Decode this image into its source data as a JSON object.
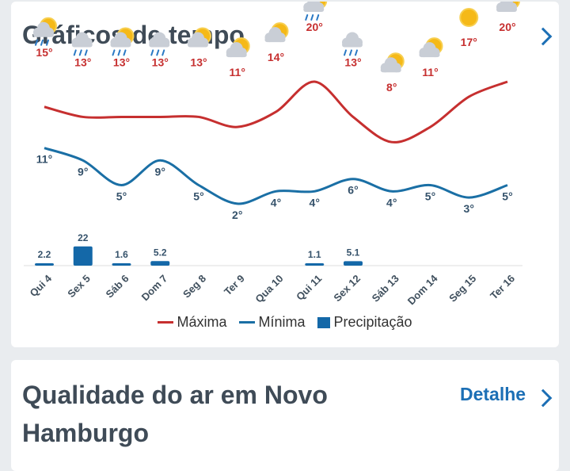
{
  "weather_card": {
    "title": "Gráficos de tempo"
  },
  "air_card": {
    "title": "Qualidade do ar em Novo Hamburgo",
    "detail_label": "Detalhe"
  },
  "colors": {
    "max": "#c62f2f",
    "min": "#1a6fa5",
    "precip": "#1468a8"
  },
  "chart_data": {
    "type": "line",
    "categories": [
      "Qui 4",
      "Sex 5",
      "Sáb 6",
      "Dom 7",
      "Seg 8",
      "Ter 9",
      "Qua 10",
      "Qui 11",
      "Sex 12",
      "Sáb 13",
      "Dom 14",
      "Seg 15",
      "Ter 16"
    ],
    "icons": [
      "sun-cloud-rain",
      "cloud-rain",
      "sun-cloud-rain",
      "cloud-rain",
      "sun-cloud",
      "sun-cloud",
      "sun-cloud",
      "sun-cloud-rain",
      "cloud-rain",
      "sun-cloud",
      "sun-cloud",
      "sun",
      "sun-cloud"
    ],
    "series": [
      {
        "name": "Máxima",
        "values": [
          15,
          13,
          13,
          13,
          13,
          11,
          14,
          20,
          13,
          8,
          11,
          17,
          20
        ]
      },
      {
        "name": "Mínima",
        "values": [
          11,
          9,
          5,
          9,
          5,
          2,
          4,
          4,
          6,
          4,
          5,
          3,
          5
        ]
      }
    ],
    "precipitation": {
      "name": "Precipitação",
      "values": [
        2.2,
        22,
        1.6,
        5.2,
        0,
        0,
        0,
        1.1,
        5.1,
        0,
        0,
        0,
        0
      ]
    },
    "temp_unit": "°"
  }
}
